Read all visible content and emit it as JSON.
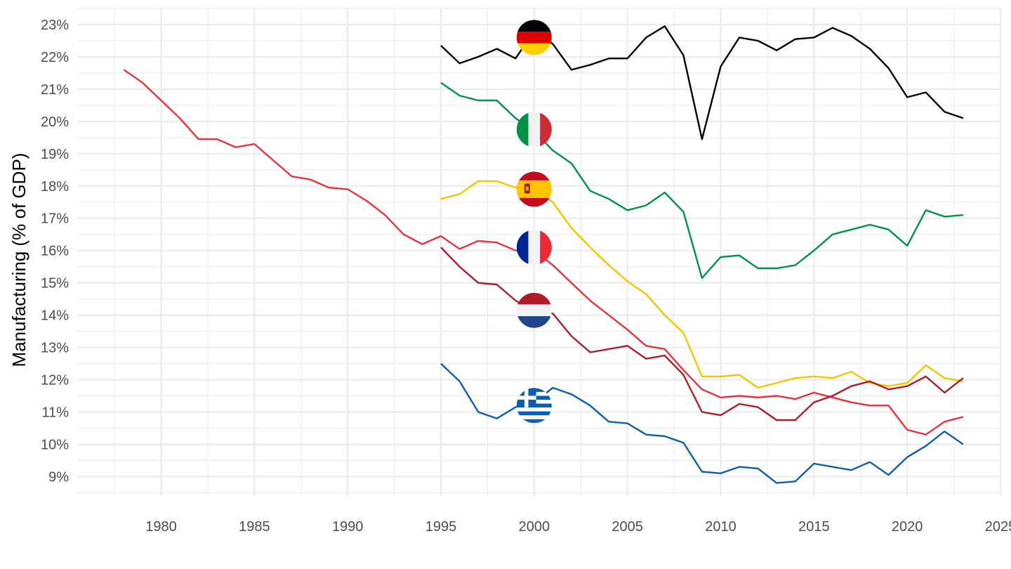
{
  "chart_data": {
    "type": "line",
    "title": "",
    "xlabel": "",
    "ylabel": "Manufacturing (% of GDP)",
    "xlim": [
      1975.5,
      2025
    ],
    "ylim": [
      8.4,
      23.5
    ],
    "grid": true,
    "legend": "flags",
    "x_ticks": [
      1980,
      1985,
      1990,
      1995,
      2000,
      2005,
      2010,
      2015,
      2020,
      2025
    ],
    "x_tick_labels": [
      "1980",
      "1985",
      "1990",
      "1995",
      "2000",
      "2005",
      "2010",
      "2015",
      "2020",
      "2025"
    ],
    "y_ticks": [
      9,
      10,
      11,
      12,
      13,
      14,
      15,
      16,
      17,
      18,
      19,
      20,
      21,
      22,
      23
    ],
    "y_tick_labels": [
      "9%",
      "10%",
      "11%",
      "12%",
      "13%",
      "14%",
      "15%",
      "16%",
      "17%",
      "18%",
      "19%",
      "20%",
      "21%",
      "22%",
      "23%"
    ],
    "series": [
      {
        "key": "germany",
        "color": "#000000",
        "flag": "germany-flag",
        "flag_x": 2000,
        "flag_y": 22.6,
        "x": [
          1995,
          1996,
          1997,
          1998,
          1999,
          2000,
          2001,
          2002,
          2003,
          2004,
          2005,
          2006,
          2007,
          2008,
          2009,
          2010,
          2011,
          2012,
          2013,
          2014,
          2015,
          2016,
          2017,
          2018,
          2019,
          2020,
          2021,
          2022,
          2023
        ],
        "values": [
          22.35,
          21.8,
          22.0,
          22.25,
          21.95,
          22.8,
          22.4,
          21.6,
          21.75,
          21.95,
          21.95,
          22.6,
          22.95,
          22.05,
          19.45,
          21.7,
          22.6,
          22.5,
          22.2,
          22.55,
          22.6,
          22.9,
          22.65,
          22.25,
          21.65,
          20.75,
          20.9,
          20.3,
          20.1
        ]
      },
      {
        "key": "italy",
        "color": "#009246",
        "flag": "italy-flag",
        "flag_x": 2000,
        "flag_y": 19.75,
        "x": [
          1995,
          1996,
          1997,
          1998,
          1999,
          2000,
          2001,
          2002,
          2003,
          2004,
          2005,
          2006,
          2007,
          2008,
          2009,
          2010,
          2011,
          2012,
          2013,
          2014,
          2015,
          2016,
          2017,
          2018,
          2019,
          2020,
          2021,
          2022,
          2023
        ],
        "values": [
          21.2,
          20.8,
          20.65,
          20.65,
          20.1,
          19.7,
          19.1,
          18.7,
          17.85,
          17.6,
          17.25,
          17.4,
          17.8,
          17.2,
          15.15,
          15.8,
          15.85,
          15.45,
          15.45,
          15.55,
          16.0,
          16.5,
          16.65,
          16.8,
          16.65,
          16.15,
          17.25,
          17.05,
          17.1
        ]
      },
      {
        "key": "spain",
        "color": "#F5C400",
        "flag": "spain-flag",
        "flag_x": 2000,
        "flag_y": 17.9,
        "x": [
          1995,
          1996,
          1997,
          1998,
          1999,
          2000,
          2001,
          2002,
          2003,
          2004,
          2005,
          2006,
          2007,
          2008,
          2009,
          2010,
          2011,
          2012,
          2013,
          2014,
          2015,
          2016,
          2017,
          2018,
          2019,
          2020,
          2021,
          2022,
          2023
        ],
        "values": [
          17.6,
          17.75,
          18.15,
          18.15,
          17.95,
          17.9,
          17.5,
          16.7,
          16.1,
          15.55,
          15.05,
          14.65,
          14.0,
          13.45,
          12.1,
          12.1,
          12.15,
          11.75,
          11.9,
          12.05,
          12.1,
          12.05,
          12.25,
          11.9,
          11.8,
          11.9,
          12.45,
          12.05,
          11.95
        ]
      },
      {
        "key": "france",
        "color": "#E8323E",
        "flag": "france-flag",
        "flag_x": 2000,
        "flag_y": 16.1,
        "x": [
          1978,
          1979,
          1980,
          1981,
          1982,
          1983,
          1984,
          1985,
          1986,
          1987,
          1988,
          1989,
          1990,
          1991,
          1992,
          1993,
          1994,
          1995,
          1996,
          1997,
          1998,
          1999,
          2000,
          2001,
          2002,
          2003,
          2004,
          2005,
          2006,
          2007,
          2008,
          2009,
          2010,
          2011,
          2012,
          2013,
          2014,
          2015,
          2016,
          2017,
          2018,
          2019,
          2020,
          2021,
          2022,
          2023
        ],
        "values": [
          21.6,
          21.2,
          20.65,
          20.1,
          19.45,
          19.45,
          19.2,
          19.3,
          18.8,
          18.3,
          18.2,
          17.95,
          17.9,
          17.55,
          17.1,
          16.5,
          16.2,
          16.45,
          16.05,
          16.3,
          16.25,
          16.0,
          16.0,
          15.55,
          15.0,
          14.45,
          14.0,
          13.55,
          13.05,
          12.95,
          12.3,
          11.7,
          11.45,
          11.5,
          11.45,
          11.5,
          11.4,
          11.6,
          11.45,
          11.3,
          11.2,
          11.2,
          10.45,
          10.3,
          10.7,
          10.85
        ]
      },
      {
        "key": "netherlands",
        "color": "#AE1C28",
        "flag": "netherlands-flag",
        "flag_x": 2000,
        "flag_y": 14.15,
        "x": [
          1995,
          1996,
          1997,
          1998,
          1999,
          2000,
          2001,
          2002,
          2003,
          2004,
          2005,
          2006,
          2007,
          2008,
          2009,
          2010,
          2011,
          2012,
          2013,
          2014,
          2015,
          2016,
          2017,
          2018,
          2019,
          2020,
          2021,
          2022,
          2023
        ],
        "values": [
          16.1,
          15.5,
          15.0,
          14.95,
          14.45,
          14.1,
          14.05,
          13.35,
          12.85,
          12.95,
          13.05,
          12.65,
          12.75,
          12.15,
          11.0,
          10.9,
          11.25,
          11.15,
          10.75,
          10.75,
          11.3,
          11.5,
          11.8,
          11.95,
          11.7,
          11.8,
          12.1,
          11.6,
          12.05
        ]
      },
      {
        "key": "greece",
        "color": "#0D5EAF",
        "flag": "greece-flag",
        "flag_x": 2000,
        "flag_y": 11.2,
        "x": [
          1995,
          1996,
          1997,
          1998,
          1999,
          2000,
          2001,
          2002,
          2003,
          2004,
          2005,
          2006,
          2007,
          2008,
          2009,
          2010,
          2011,
          2012,
          2013,
          2014,
          2015,
          2016,
          2017,
          2018,
          2019,
          2020,
          2021,
          2022,
          2023
        ],
        "values": [
          12.5,
          11.95,
          11.0,
          10.8,
          11.15,
          11.3,
          11.75,
          11.55,
          11.2,
          10.7,
          10.65,
          10.3,
          10.25,
          10.05,
          9.15,
          9.1,
          9.3,
          9.25,
          8.8,
          8.85,
          9.4,
          9.3,
          9.2,
          9.45,
          9.05,
          9.6,
          9.95,
          10.4,
          10.0
        ]
      }
    ]
  }
}
